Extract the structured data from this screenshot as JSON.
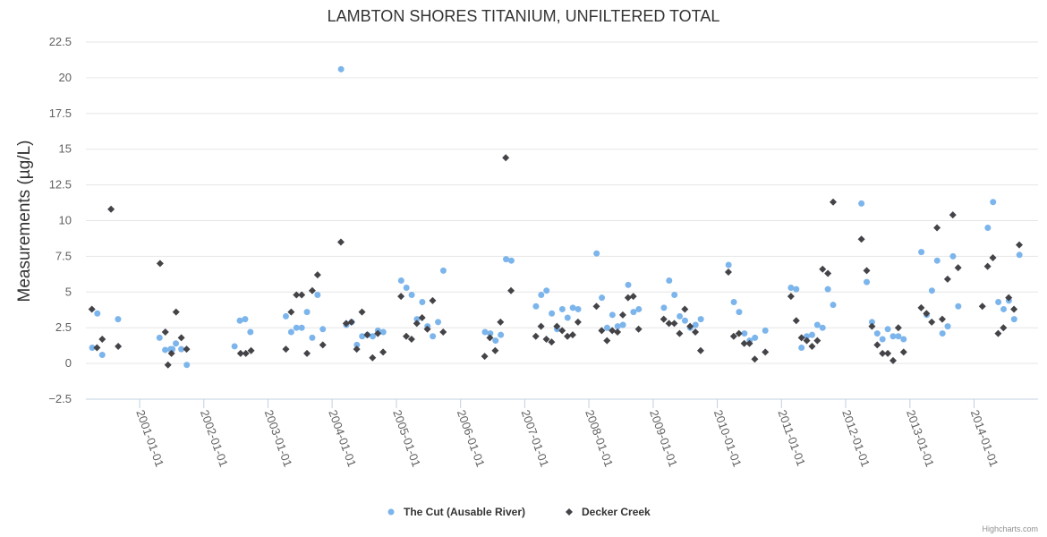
{
  "chart_data": {
    "type": "scatter",
    "title": "LAMBTON SHORES TITANIUM, UNFILTERED TOTAL",
    "xlabel": "",
    "ylabel": "Measurements (µg/L)",
    "ylim": [
      -2.5,
      22.5
    ],
    "yticks": [
      "−2.5",
      "0",
      "2.5",
      "5",
      "7.5",
      "10",
      "12.5",
      "15",
      "17.5",
      "20",
      "22.5"
    ],
    "xlim": [
      "2000-03-01",
      "2014-12-31"
    ],
    "xticks": [
      "2001-01-01",
      "2002-01-01",
      "2003-01-01",
      "2004-01-01",
      "2005-01-01",
      "2006-01-01",
      "2007-01-01",
      "2008-01-01",
      "2009-01-01",
      "2010-01-01",
      "2011-01-01",
      "2012-01-01",
      "2013-01-01",
      "2014-01-01"
    ],
    "grid": true,
    "legend": "bottom-center",
    "credits": "Highcharts.com",
    "series": [
      {
        "name": "The Cut (Ausable River)",
        "color": "#7cb5ec",
        "marker": "circle",
        "points": [
          [
            "2000-04-06",
            1.1
          ],
          [
            "2000-05-05",
            3.5
          ],
          [
            "2000-06-02",
            0.6
          ],
          [
            "2000-08-31",
            3.1
          ],
          [
            "2001-04-24",
            1.8
          ],
          [
            "2001-05-26",
            0.95
          ],
          [
            "2001-06-26",
            1.0
          ],
          [
            "2001-07-26",
            1.4
          ],
          [
            "2001-08-26",
            1.0
          ],
          [
            "2001-09-26",
            -0.1
          ],
          [
            "2001-07-06",
            1.0
          ],
          [
            "2002-06-25",
            1.2
          ],
          [
            "2002-07-25",
            3.0
          ],
          [
            "2002-08-24",
            3.1
          ],
          [
            "2002-09-23",
            2.2
          ],
          [
            "2003-04-13",
            3.3
          ],
          [
            "2003-05-13",
            2.2
          ],
          [
            "2003-06-12",
            2.5
          ],
          [
            "2003-07-12",
            2.5
          ],
          [
            "2003-08-11",
            3.6
          ],
          [
            "2003-09-10",
            1.8
          ],
          [
            "2003-10-10",
            4.8
          ],
          [
            "2003-11-09",
            2.4
          ],
          [
            "2004-02-21",
            20.6
          ],
          [
            "2004-03-22",
            2.7
          ],
          [
            "2004-04-21",
            2.9
          ],
          [
            "2004-05-21",
            1.3
          ],
          [
            "2004-06-20",
            1.9
          ],
          [
            "2004-07-20",
            2.0
          ],
          [
            "2004-08-19",
            1.9
          ],
          [
            "2004-09-18",
            2.3
          ],
          [
            "2004-10-18",
            2.2
          ],
          [
            "2005-01-28",
            5.8
          ],
          [
            "2005-02-27",
            5.3
          ],
          [
            "2005-03-29",
            4.8
          ],
          [
            "2005-04-28",
            3.1
          ],
          [
            "2005-05-28",
            4.3
          ],
          [
            "2005-06-27",
            2.6
          ],
          [
            "2005-07-27",
            1.9
          ],
          [
            "2005-08-26",
            2.9
          ],
          [
            "2005-09-25",
            6.5
          ],
          [
            "2006-05-20",
            2.2
          ],
          [
            "2006-06-19",
            2.1
          ],
          [
            "2006-07-19",
            1.6
          ],
          [
            "2006-08-18",
            2.0
          ],
          [
            "2006-09-17",
            7.3
          ],
          [
            "2006-10-17",
            7.2
          ],
          [
            "2007-03-06",
            4.0
          ],
          [
            "2007-04-05",
            4.8
          ],
          [
            "2007-05-05",
            5.1
          ],
          [
            "2007-06-04",
            3.5
          ],
          [
            "2007-07-04",
            2.4
          ],
          [
            "2007-08-03",
            3.8
          ],
          [
            "2007-09-02",
            3.2
          ],
          [
            "2007-10-02",
            3.9
          ],
          [
            "2007-11-01",
            3.8
          ],
          [
            "2008-02-14",
            7.7
          ],
          [
            "2008-03-15",
            4.6
          ],
          [
            "2008-04-14",
            2.5
          ],
          [
            "2008-05-14",
            3.4
          ],
          [
            "2008-06-13",
            2.6
          ],
          [
            "2008-07-13",
            2.7
          ],
          [
            "2008-08-12",
            5.5
          ],
          [
            "2008-09-11",
            3.6
          ],
          [
            "2008-10-11",
            3.8
          ],
          [
            "2009-03-03",
            3.9
          ],
          [
            "2009-04-02",
            5.8
          ],
          [
            "2009-05-02",
            4.8
          ],
          [
            "2009-06-01",
            3.3
          ],
          [
            "2009-07-01",
            3.0
          ],
          [
            "2009-07-31",
            2.5
          ],
          [
            "2009-08-30",
            2.7
          ],
          [
            "2009-09-29",
            3.1
          ],
          [
            "2010-03-06",
            6.9
          ],
          [
            "2010-04-05",
            4.3
          ],
          [
            "2010-05-05",
            3.6
          ],
          [
            "2010-06-04",
            2.1
          ],
          [
            "2010-07-04",
            1.6
          ],
          [
            "2010-08-03",
            1.8
          ],
          [
            "2010-10-01",
            2.3
          ],
          [
            "2011-02-24",
            5.3
          ],
          [
            "2011-03-26",
            5.2
          ],
          [
            "2011-04-25",
            1.1
          ],
          [
            "2011-05-25",
            1.9
          ],
          [
            "2011-06-24",
            2.0
          ],
          [
            "2011-07-24",
            2.7
          ],
          [
            "2011-08-23",
            2.5
          ],
          [
            "2011-09-22",
            5.2
          ],
          [
            "2011-10-22",
            4.1
          ],
          [
            "2012-03-31",
            11.2
          ],
          [
            "2012-04-30",
            5.7
          ],
          [
            "2012-05-30",
            2.9
          ],
          [
            "2012-06-29",
            2.1
          ],
          [
            "2012-07-29",
            1.7
          ],
          [
            "2012-08-28",
            2.4
          ],
          [
            "2012-09-27",
            1.9
          ],
          [
            "2012-10-27",
            1.9
          ],
          [
            "2012-11-26",
            1.7
          ],
          [
            "2013-03-07",
            7.8
          ],
          [
            "2013-04-06",
            3.4
          ],
          [
            "2013-05-06",
            5.1
          ],
          [
            "2013-06-05",
            7.2
          ],
          [
            "2013-07-05",
            2.1
          ],
          [
            "2013-08-04",
            2.6
          ],
          [
            "2013-09-03",
            7.5
          ],
          [
            "2013-10-03",
            4.0
          ],
          [
            "2014-03-20",
            9.5
          ],
          [
            "2014-04-19",
            11.3
          ],
          [
            "2014-05-19",
            4.3
          ],
          [
            "2014-06-18",
            3.8
          ],
          [
            "2014-07-18",
            4.4
          ],
          [
            "2014-08-17",
            3.1
          ],
          [
            "2014-09-16",
            7.6
          ]
        ]
      },
      {
        "name": "Decker Creek",
        "color": "#434348",
        "marker": "diamond",
        "points": [
          [
            "2000-04-04",
            3.8
          ],
          [
            "2000-05-03",
            1.1
          ],
          [
            "2000-06-02",
            1.7
          ],
          [
            "2000-07-22",
            10.8
          ],
          [
            "2000-09-01",
            1.2
          ],
          [
            "2001-04-27",
            7.0
          ],
          [
            "2001-05-27",
            2.2
          ],
          [
            "2001-06-11",
            -0.1
          ],
          [
            "2001-07-01",
            0.7
          ],
          [
            "2001-07-27",
            3.6
          ],
          [
            "2001-08-26",
            1.8
          ],
          [
            "2001-09-25",
            1.0
          ],
          [
            "2002-07-29",
            0.7
          ],
          [
            "2002-08-28",
            0.7
          ],
          [
            "2002-09-27",
            0.9
          ],
          [
            "2003-04-13",
            1.0
          ],
          [
            "2003-05-13",
            3.6
          ],
          [
            "2003-06-12",
            4.8
          ],
          [
            "2003-07-12",
            4.8
          ],
          [
            "2003-08-11",
            0.7
          ],
          [
            "2003-09-10",
            5.1
          ],
          [
            "2003-10-10",
            6.2
          ],
          [
            "2003-11-09",
            1.3
          ],
          [
            "2004-02-20",
            8.5
          ],
          [
            "2004-03-21",
            2.8
          ],
          [
            "2004-04-20",
            2.9
          ],
          [
            "2004-05-20",
            1.0
          ],
          [
            "2004-06-19",
            3.6
          ],
          [
            "2004-07-19",
            2.0
          ],
          [
            "2004-08-18",
            0.4
          ],
          [
            "2004-09-17",
            2.1
          ],
          [
            "2004-10-17",
            0.8
          ],
          [
            "2005-01-27",
            4.7
          ],
          [
            "2005-02-26",
            1.9
          ],
          [
            "2005-03-28",
            1.7
          ],
          [
            "2005-04-27",
            2.8
          ],
          [
            "2005-05-27",
            3.2
          ],
          [
            "2005-06-26",
            2.4
          ],
          [
            "2005-07-26",
            4.4
          ],
          [
            "2005-09-24",
            2.2
          ],
          [
            "2006-05-18",
            0.5
          ],
          [
            "2006-06-17",
            1.8
          ],
          [
            "2006-07-17",
            0.9
          ],
          [
            "2006-08-16",
            2.9
          ],
          [
            "2006-09-15",
            14.4
          ],
          [
            "2006-10-15",
            5.1
          ],
          [
            "2007-03-05",
            1.9
          ],
          [
            "2007-04-04",
            2.6
          ],
          [
            "2007-05-04",
            1.7
          ],
          [
            "2007-06-03",
            1.5
          ],
          [
            "2007-07-03",
            2.6
          ],
          [
            "2007-08-02",
            2.3
          ],
          [
            "2007-09-01",
            1.9
          ],
          [
            "2007-10-01",
            2.0
          ],
          [
            "2007-10-31",
            2.9
          ],
          [
            "2008-02-13",
            4.0
          ],
          [
            "2008-03-14",
            2.3
          ],
          [
            "2008-04-13",
            1.6
          ],
          [
            "2008-05-13",
            2.3
          ],
          [
            "2008-06-12",
            2.2
          ],
          [
            "2008-07-12",
            3.4
          ],
          [
            "2008-08-11",
            4.6
          ],
          [
            "2008-09-10",
            4.7
          ],
          [
            "2008-10-10",
            2.4
          ],
          [
            "2009-03-02",
            3.1
          ],
          [
            "2009-04-01",
            2.8
          ],
          [
            "2009-05-01",
            2.8
          ],
          [
            "2009-05-31",
            2.1
          ],
          [
            "2009-06-30",
            3.8
          ],
          [
            "2009-07-30",
            2.6
          ],
          [
            "2009-08-29",
            2.2
          ],
          [
            "2009-09-28",
            0.9
          ],
          [
            "2010-03-05",
            6.4
          ],
          [
            "2010-04-04",
            1.9
          ],
          [
            "2010-05-04",
            2.1
          ],
          [
            "2010-06-03",
            1.4
          ],
          [
            "2010-07-03",
            1.4
          ],
          [
            "2010-08-02",
            0.3
          ],
          [
            "2010-10-01",
            0.8
          ],
          [
            "2011-02-24",
            4.7
          ],
          [
            "2011-03-26",
            3.0
          ],
          [
            "2011-04-25",
            1.8
          ],
          [
            "2011-05-25",
            1.6
          ],
          [
            "2011-06-24",
            1.2
          ],
          [
            "2011-07-24",
            1.6
          ],
          [
            "2011-08-23",
            6.6
          ],
          [
            "2011-09-22",
            6.3
          ],
          [
            "2011-10-22",
            11.3
          ],
          [
            "2012-03-31",
            8.7
          ],
          [
            "2012-04-30",
            6.5
          ],
          [
            "2012-05-30",
            2.6
          ],
          [
            "2012-06-29",
            1.3
          ],
          [
            "2012-07-29",
            0.7
          ],
          [
            "2012-08-28",
            0.7
          ],
          [
            "2012-09-27",
            0.2
          ],
          [
            "2012-10-27",
            2.5
          ],
          [
            "2012-11-26",
            0.8
          ],
          [
            "2013-03-06",
            3.9
          ],
          [
            "2013-04-05",
            3.5
          ],
          [
            "2013-05-05",
            2.9
          ],
          [
            "2013-06-04",
            9.5
          ],
          [
            "2013-07-04",
            3.1
          ],
          [
            "2013-08-03",
            5.9
          ],
          [
            "2013-09-02",
            10.4
          ],
          [
            "2013-10-02",
            6.7
          ],
          [
            "2014-02-17",
            4.0
          ],
          [
            "2014-03-19",
            6.8
          ],
          [
            "2014-04-18",
            7.4
          ],
          [
            "2014-05-18",
            2.1
          ],
          [
            "2014-06-17",
            2.5
          ],
          [
            "2014-07-17",
            4.6
          ],
          [
            "2014-08-16",
            3.8
          ],
          [
            "2014-09-15",
            8.3
          ]
        ]
      }
    ]
  }
}
